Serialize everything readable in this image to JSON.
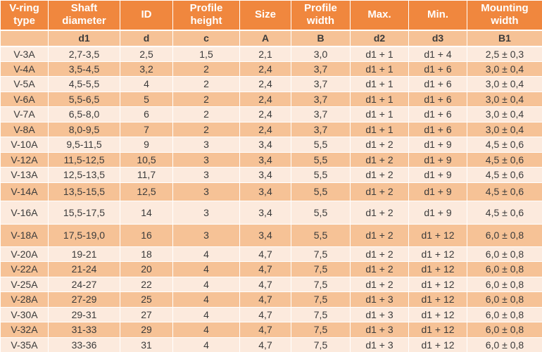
{
  "colors": {
    "header_bg": "#F0873E",
    "subheader_bg": "#F6C296",
    "row_light": "#FCEADD",
    "row_dark": "#F6C296",
    "grid_line": "#FFFFFF",
    "header_text": "#FFFFFF",
    "body_text": "#3B3B3B"
  },
  "table": {
    "headers": [
      "V-ring\ntype",
      "Shaft\ndiameter",
      "ID",
      "Profile\nheight",
      "Size",
      "Profile\nwidth",
      "Max.",
      "Min.",
      "Mounting\nwidth"
    ],
    "subheaders": [
      "",
      "d1",
      "d",
      "c",
      "A",
      "B",
      "d2",
      "d3",
      "B1"
    ],
    "rows": [
      [
        "V-3A",
        "2,7-3,5",
        "2,5",
        "1,5",
        "2,1",
        "3,0",
        "d1 + 1",
        "d1 + 4",
        "2,5 ± 0,3"
      ],
      [
        "V-4A",
        "3,5-4,5",
        "3,2",
        "2",
        "2,4",
        "3,7",
        "d1 + 1",
        "d1 + 6",
        "3,0 ± 0,4"
      ],
      [
        "V-5A",
        "4,5-5,5",
        "4",
        "2",
        "2,4",
        "3,7",
        "d1 + 1",
        "d1 + 6",
        "3,0 ± 0,4"
      ],
      [
        "V-6A",
        "5,5-6,5",
        "5",
        "2",
        "2,4",
        "3,7",
        "d1 + 1",
        "d1 + 6",
        "3,0 ± 0,4"
      ],
      [
        "V-7A",
        "6,5-8,0",
        "6",
        "2",
        "2,4",
        "3,7",
        "d1 + 1",
        "d1 + 6",
        "3,0 ± 0,4"
      ],
      [
        "V-8A",
        "8,0-9,5",
        "7",
        "2",
        "2,4",
        "3,7",
        "d1 + 1",
        "d1 + 6",
        "3,0 ± 0,4"
      ],
      [
        "V-10A",
        "9,5-11,5",
        "9",
        "3",
        "3,4",
        "5,5",
        "d1 + 2",
        "d1 + 9",
        "4,5 ± 0,6"
      ],
      [
        "V-12A",
        "11,5-12,5",
        "10,5",
        "3",
        "3,4",
        "5,5",
        "d1 + 2",
        "d1 + 9",
        "4,5 ± 0,6"
      ],
      [
        "V-13A",
        "12,5-13,5",
        "11,7",
        "3",
        "3,4",
        "5,5",
        "d1 + 2",
        "d1 + 9",
        "4,5 ± 0,6"
      ],
      [
        "V-14A",
        "13,5-15,5",
        "12,5",
        "3",
        "3,4",
        "5,5",
        "d1 + 2",
        "d1 + 9",
        "4,5 ± 0,6"
      ],
      [
        "V-16A",
        "15,5-17,5",
        "14",
        "3",
        "3,4",
        "5,5",
        "d1 + 2",
        "d1 + 9",
        "4,5 ± 0,6"
      ],
      [
        "V-18A",
        "17,5-19,0",
        "16",
        "3",
        "3,4",
        "5,5",
        "d1 + 2",
        "d1 + 12",
        "6,0 ± 0,8"
      ],
      [
        "V-20A",
        "19-21",
        "18",
        "4",
        "4,7",
        "7,5",
        "d1 + 2",
        "d1 + 12",
        "6,0 ± 0,8"
      ],
      [
        "V-22A",
        "21-24",
        "20",
        "4",
        "4,7",
        "7,5",
        "d1 + 2",
        "d1 + 12",
        "6,0 ± 0,8"
      ],
      [
        "V-25A",
        "24-27",
        "22",
        "4",
        "4,7",
        "7,5",
        "d1 + 2",
        "d1 + 12",
        "6,0 ± 0,8"
      ],
      [
        "V-28A",
        "27-29",
        "25",
        "4",
        "4,7",
        "7,5",
        "d1 + 3",
        "d1 + 12",
        "6,0 ± 0,8"
      ],
      [
        "V-30A",
        "29-31",
        "27",
        "4",
        "4,7",
        "7,5",
        "d1 + 3",
        "d1 + 12",
        "6,0 ± 0,8"
      ],
      [
        "V-32A",
        "31-33",
        "29",
        "4",
        "4,7",
        "7,5",
        "d1 + 3",
        "d1 + 12",
        "6,0 ± 0,8"
      ],
      [
        "V-35A",
        "33-36",
        "31",
        "4",
        "4,7",
        "7,5",
        "d1 + 3",
        "d1 + 12",
        "6,0 ± 0,8"
      ]
    ]
  }
}
